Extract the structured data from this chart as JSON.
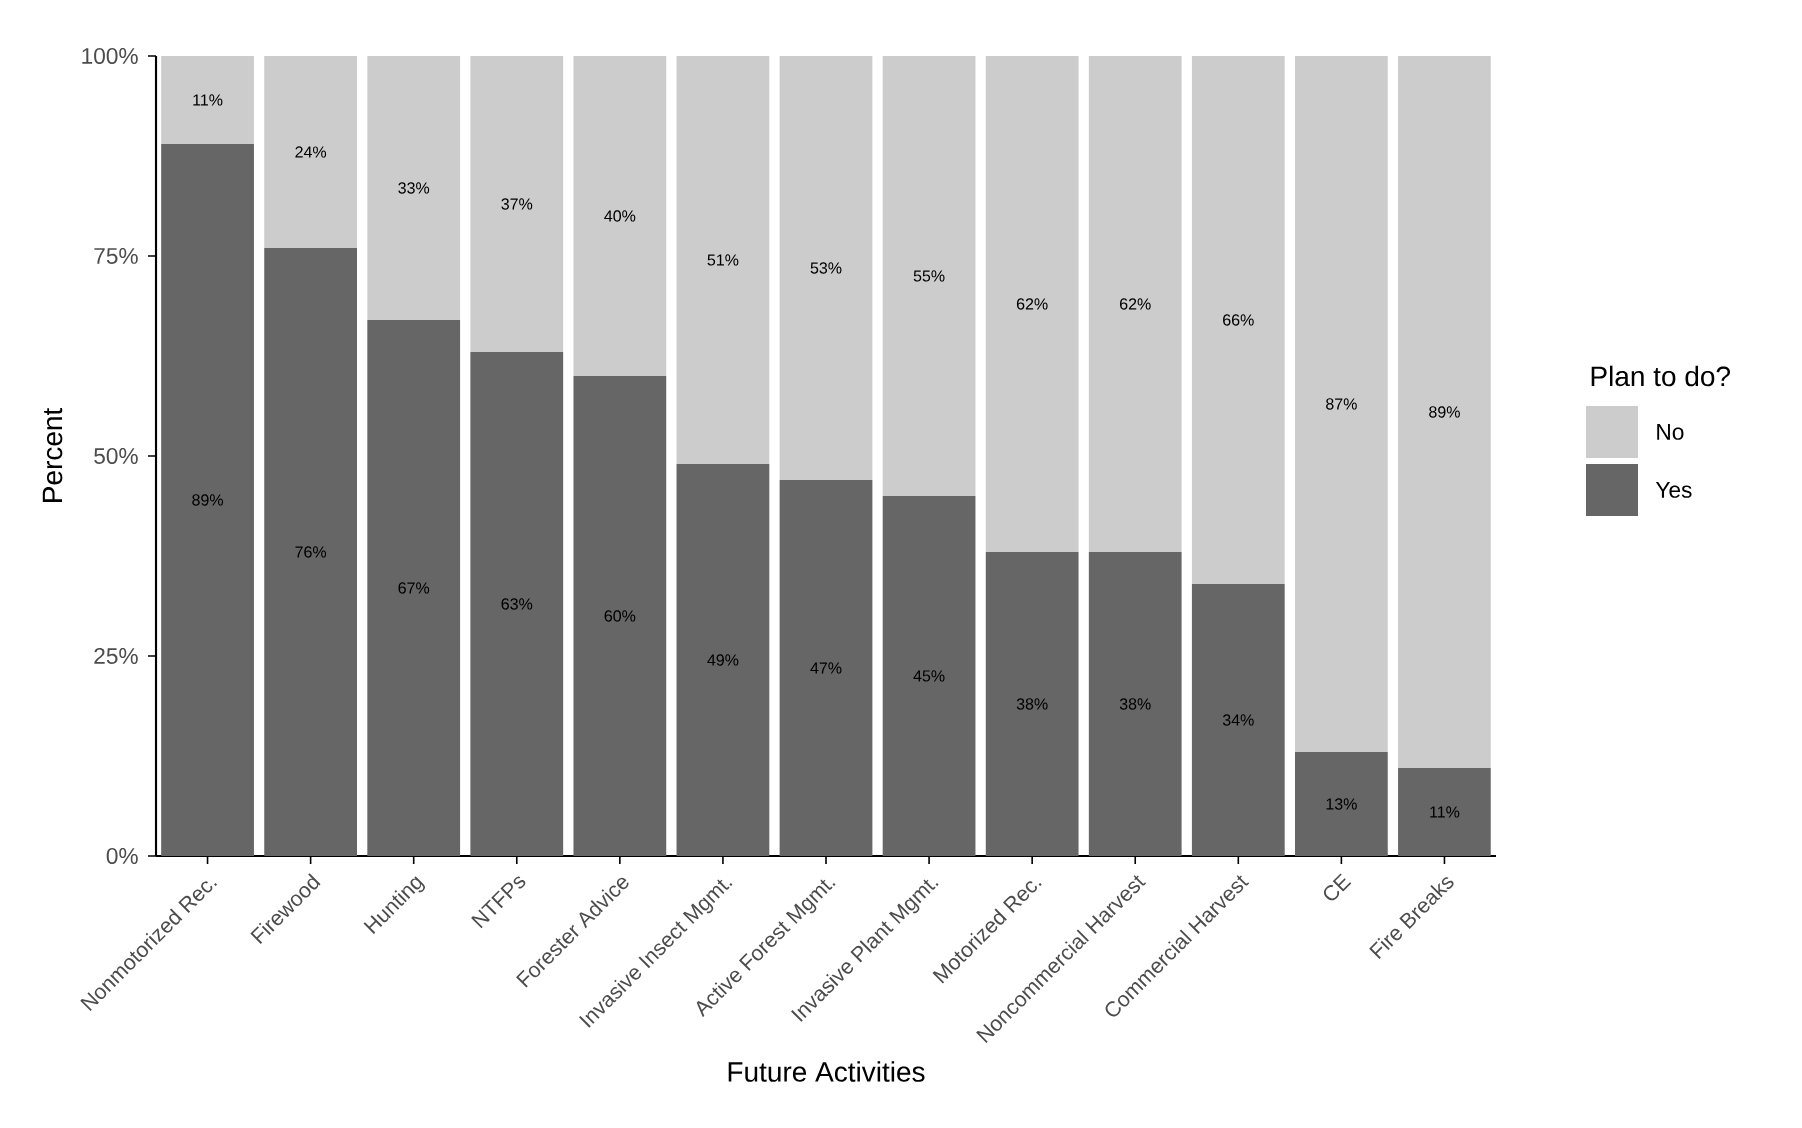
{
  "chart_data": {
    "type": "bar",
    "stacked": true,
    "xlabel": "Future Activities",
    "ylabel": "Percent",
    "legend_title": "Plan to do?",
    "legend": "right",
    "grid": false,
    "categories": [
      "Nonmotorized Rec.",
      "Firewood",
      "Hunting",
      "NTFPs",
      "Forester Advice",
      "Invasive Insect Mgmt.",
      "Active Forest Mgmt.",
      "Invasive Plant Mgmt.",
      "Motorized Rec.",
      "Noncommercial Harvest",
      "Commercial Harvest",
      "CE",
      "Fire Breaks"
    ],
    "series": [
      {
        "name": "Yes",
        "color": "#666666",
        "values": [
          89,
          76,
          67,
          63,
          60,
          49,
          47,
          45,
          38,
          38,
          34,
          13,
          11
        ],
        "value_labels": [
          "89%",
          "76%",
          "67%",
          "63%",
          "60%",
          "49%",
          "47%",
          "45%",
          "38%",
          "38%",
          "34%",
          "13%",
          "11%"
        ]
      },
      {
        "name": "No",
        "color": "#cccccc",
        "values": [
          11,
          24,
          33,
          37,
          40,
          51,
          53,
          55,
          62,
          62,
          66,
          87,
          89
        ],
        "value_labels": [
          "11%",
          "24%",
          "33%",
          "37%",
          "40%",
          "51%",
          "53%",
          "55%",
          "62%",
          "62%",
          "66%",
          "87%",
          "89%"
        ]
      }
    ],
    "ylim": [
      0,
      100
    ],
    "yticks": [
      {
        "value": 0,
        "label": "0%"
      },
      {
        "value": 25,
        "label": "25%"
      },
      {
        "value": 50,
        "label": "50%"
      },
      {
        "value": 75,
        "label": "75%"
      },
      {
        "value": 100,
        "label": "100%"
      }
    ]
  }
}
